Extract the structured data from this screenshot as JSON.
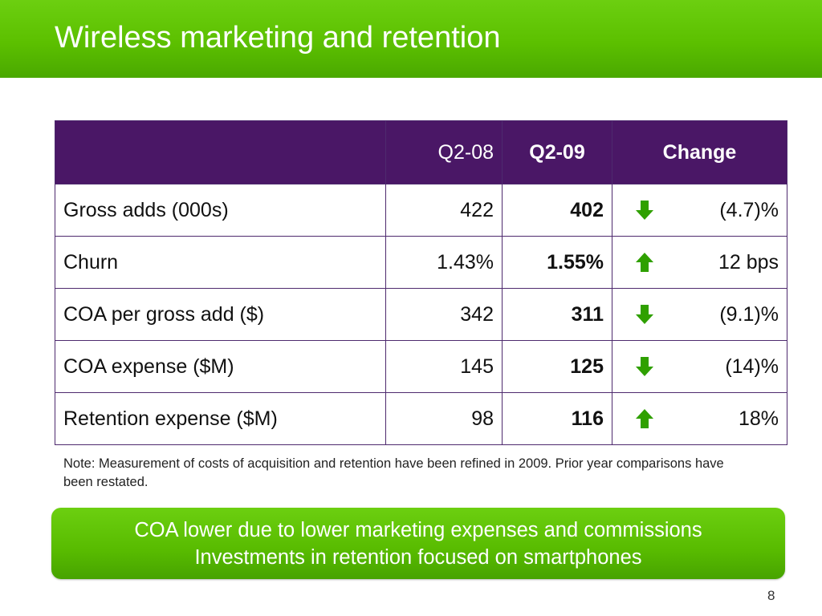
{
  "title": "Wireless marketing and retention",
  "table": {
    "headers": [
      "",
      "Q2-08",
      "Q2-09",
      "Change"
    ],
    "rows": [
      {
        "label": "Gross adds (000s)",
        "q2_08": "422",
        "q2_09": "402",
        "trend": "down-arrow-icon",
        "change": "(4.7)%"
      },
      {
        "label": "Churn",
        "q2_08": "1.43%",
        "q2_09": "1.55%",
        "trend": "up-arrow-icon",
        "change": "12 bps"
      },
      {
        "label": "COA per gross add ($)",
        "q2_08": "342",
        "q2_09": "311",
        "trend": "down-arrow-icon",
        "change": "(9.1)%"
      },
      {
        "label": "COA expense ($M)",
        "q2_08": "145",
        "q2_09": "125",
        "trend": "down-arrow-icon",
        "change": "(14)%"
      },
      {
        "label": "Retention expense ($M)",
        "q2_08": "98",
        "q2_09": "116",
        "trend": "up-arrow-icon",
        "change": "18%"
      }
    ]
  },
  "note": "Note: Measurement of costs of acquisition and retention have been refined in 2009. Prior year comparisons have been restated.",
  "callout": {
    "line1": "COA lower due to lower marketing expenses and commissions",
    "line2": "Investments in retention focused on smartphones"
  },
  "page_number": "8",
  "colors": {
    "header_green": "#5cc000",
    "table_header_purple": "#4a1766",
    "arrow_green": "#2fa000"
  }
}
